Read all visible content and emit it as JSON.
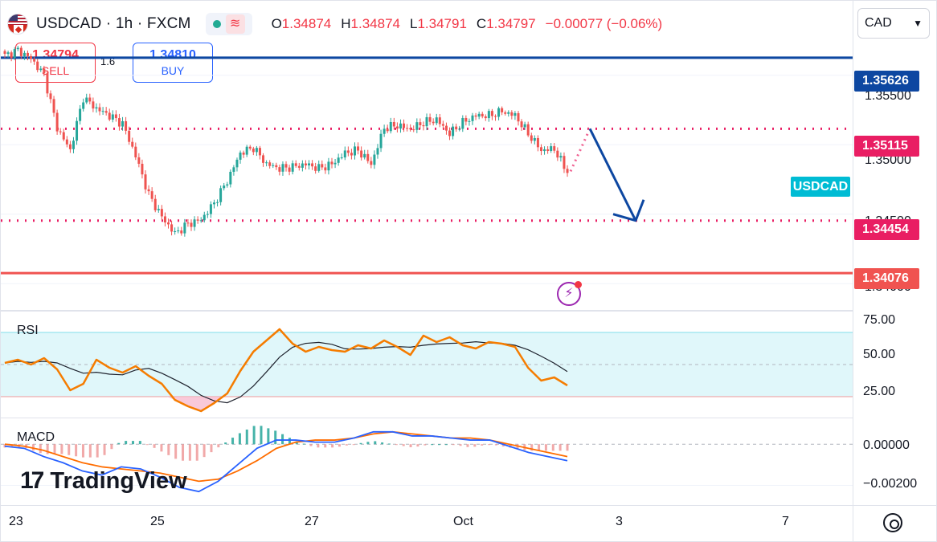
{
  "header": {
    "symbol": "USDCAD · 1h · FXCM",
    "ohlc": [
      {
        "k": "O",
        "v": "1.34874"
      },
      {
        "k": "H",
        "v": "1.34874"
      },
      {
        "k": "L",
        "v": "1.34791"
      },
      {
        "k": "C",
        "v": "1.34797"
      }
    ],
    "change": "−0.00077 (−0.06%)"
  },
  "trade": {
    "sell_price": "1.34794",
    "sell_label": "SELL",
    "spread": "1.6",
    "buy_price": "1.34810",
    "buy_label": "BUY"
  },
  "currency_select": "CAD",
  "price_axis": {
    "ticks": [
      "1.35500",
      "1.35000"
    ],
    "partial_ticks": [
      "1.34500",
      "1.34000"
    ],
    "badges": [
      {
        "price": 1.35626,
        "label": "1.35626",
        "color": "#0d47a1"
      },
      {
        "price": 1.35115,
        "label": "1.35115",
        "color": "#e91e63"
      },
      {
        "price": 1.34454,
        "label": "1.34454",
        "color": "#e91e63"
      },
      {
        "price": 1.34076,
        "label": "1.34076",
        "color": "#f05350"
      }
    ],
    "symbol_tag": "USDCAD"
  },
  "rsi": {
    "title": "RSI",
    "ticks": [
      "75.00",
      "50.00",
      "25.00"
    ]
  },
  "macd": {
    "title": "MACD",
    "ticks": [
      "0.00000",
      "−0.00200"
    ]
  },
  "time_axis": [
    "23",
    "25",
    "27",
    "Oct",
    "3",
    "7"
  ],
  "logo": {
    "mark": "17",
    "word": "TradingView"
  },
  "colors": {
    "up": "#26a69a",
    "down": "#ef5350",
    "rsi_line": "#f57c00",
    "rsi_ma": "#1e222d",
    "macd_line": "#2962ff",
    "signal_line": "#ff6d00",
    "arrow": "#0d47a1"
  },
  "chart_data": {
    "type": "candlestick",
    "timeframe": "1h",
    "ylim": [
      1.3384,
      1.3592
    ],
    "horizontal_levels": [
      1.35626,
      1.35115,
      1.34454,
      1.34076
    ],
    "close_path": [
      {
        "i": 0,
        "c": 1.3564
      },
      {
        "i": 4,
        "c": 1.3568
      },
      {
        "i": 8,
        "c": 1.3562
      },
      {
        "i": 12,
        "c": 1.355
      },
      {
        "i": 16,
        "c": 1.3512
      },
      {
        "i": 20,
        "c": 1.3496
      },
      {
        "i": 24,
        "c": 1.3534
      },
      {
        "i": 28,
        "c": 1.3526
      },
      {
        "i": 32,
        "c": 1.3521
      },
      {
        "i": 36,
        "c": 1.3515
      },
      {
        "i": 40,
        "c": 1.3492
      },
      {
        "i": 44,
        "c": 1.3464
      },
      {
        "i": 48,
        "c": 1.3448
      },
      {
        "i": 52,
        "c": 1.3436
      },
      {
        "i": 56,
        "c": 1.3443
      },
      {
        "i": 60,
        "c": 1.3446
      },
      {
        "i": 64,
        "c": 1.3458
      },
      {
        "i": 68,
        "c": 1.3474
      },
      {
        "i": 72,
        "c": 1.3494
      },
      {
        "i": 76,
        "c": 1.3498
      },
      {
        "i": 80,
        "c": 1.3486
      },
      {
        "i": 84,
        "c": 1.3483
      },
      {
        "i": 88,
        "c": 1.3484
      },
      {
        "i": 92,
        "c": 1.3486
      },
      {
        "i": 96,
        "c": 1.3483
      },
      {
        "i": 100,
        "c": 1.3486
      },
      {
        "i": 104,
        "c": 1.3494
      },
      {
        "i": 108,
        "c": 1.3496
      },
      {
        "i": 112,
        "c": 1.3486
      },
      {
        "i": 116,
        "c": 1.3512
      },
      {
        "i": 120,
        "c": 1.3514
      },
      {
        "i": 124,
        "c": 1.3511
      },
      {
        "i": 128,
        "c": 1.3516
      },
      {
        "i": 132,
        "c": 1.3518
      },
      {
        "i": 136,
        "c": 1.3508
      },
      {
        "i": 140,
        "c": 1.3516
      },
      {
        "i": 144,
        "c": 1.3521
      },
      {
        "i": 148,
        "c": 1.3521
      },
      {
        "i": 152,
        "c": 1.3524
      },
      {
        "i": 156,
        "c": 1.3521
      },
      {
        "i": 160,
        "c": 1.3508
      },
      {
        "i": 164,
        "c": 1.3496
      },
      {
        "i": 168,
        "c": 1.3497
      },
      {
        "i": 172,
        "c": 1.34797
      }
    ],
    "projection": {
      "from": 1.35115,
      "to": 1.34454
    },
    "rsi": {
      "ylim": [
        20,
        80
      ],
      "band": [
        30,
        70
      ],
      "values": [
        51,
        53,
        50,
        54,
        47,
        34,
        38,
        53,
        48,
        45,
        49,
        43,
        38,
        28,
        24,
        21,
        26,
        32,
        46,
        58,
        65,
        72,
        63,
        58,
        61,
        59,
        58,
        62,
        60,
        65,
        61,
        56,
        68,
        64,
        67,
        62,
        60,
        64,
        63,
        61,
        48,
        40,
        42,
        37
      ]
    },
    "macd": {
      "ylim": [
        -0.0028,
        0.0011
      ],
      "macd": [
        -0.0001,
        -0.0002,
        -0.0006,
        -0.0009,
        -0.0013,
        -0.0015,
        -0.0011,
        -0.0012,
        -0.0016,
        -0.0021,
        -0.0023,
        -0.0018,
        -0.001,
        -0.0002,
        0.0002,
        0.0002,
        0.0001,
        0.0001,
        0.0003,
        0.0006,
        0.0006,
        0.0004,
        0.0004,
        0.0003,
        0.0002,
        0.0002,
        -0.0001,
        -0.0004,
        -0.0006,
        -0.0008
      ],
      "signal": [
        0.0,
        -0.0001,
        -0.0003,
        -0.0006,
        -0.0009,
        -0.0011,
        -0.0012,
        -0.0013,
        -0.0014,
        -0.0016,
        -0.0018,
        -0.0017,
        -0.0013,
        -0.0008,
        -0.0002,
        0.0001,
        0.0002,
        0.0002,
        0.0003,
        0.0005,
        0.0006,
        0.0005,
        0.0004,
        0.0003,
        0.0003,
        0.0002,
        0.0,
        -0.0002,
        -0.0004,
        -0.0006
      ]
    }
  }
}
